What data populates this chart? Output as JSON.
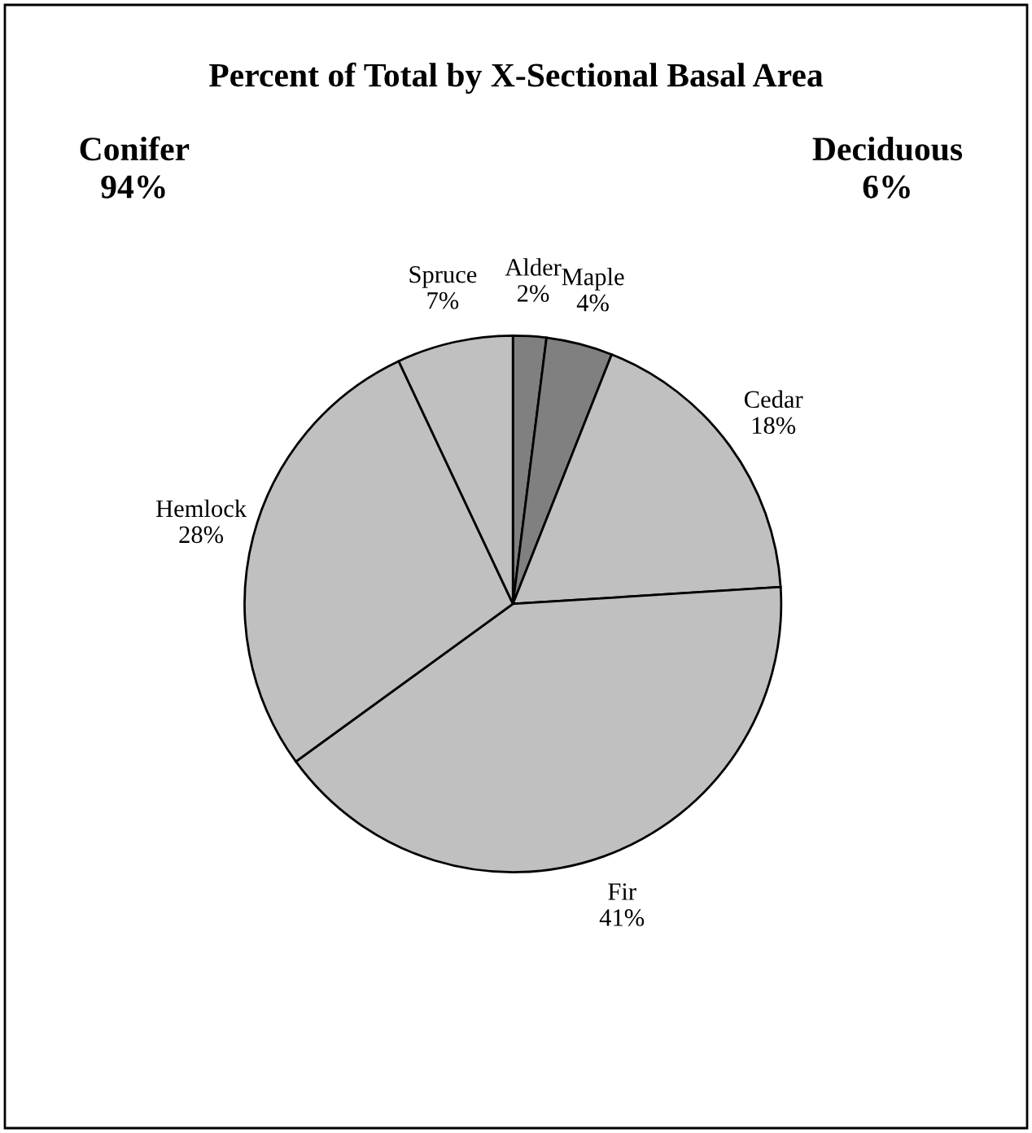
{
  "chart_data": {
    "type": "pie",
    "title": "Percent of Total by X-Sectional Basal Area",
    "categories": [
      "Alder",
      "Maple",
      "Cedar",
      "Fir",
      "Hemlock",
      "Spruce"
    ],
    "values": [
      2,
      4,
      18,
      41,
      28,
      7
    ],
    "value_labels": [
      "2%",
      "4%",
      "18%",
      "41%",
      "28%",
      "7%"
    ],
    "colors": [
      "#808080",
      "#808080",
      "#c0c0c0",
      "#c0c0c0",
      "#c0c0c0",
      "#c0c0c0"
    ],
    "annotations": [
      "Conifer\n94%",
      "Deciduous\n6%"
    ]
  }
}
